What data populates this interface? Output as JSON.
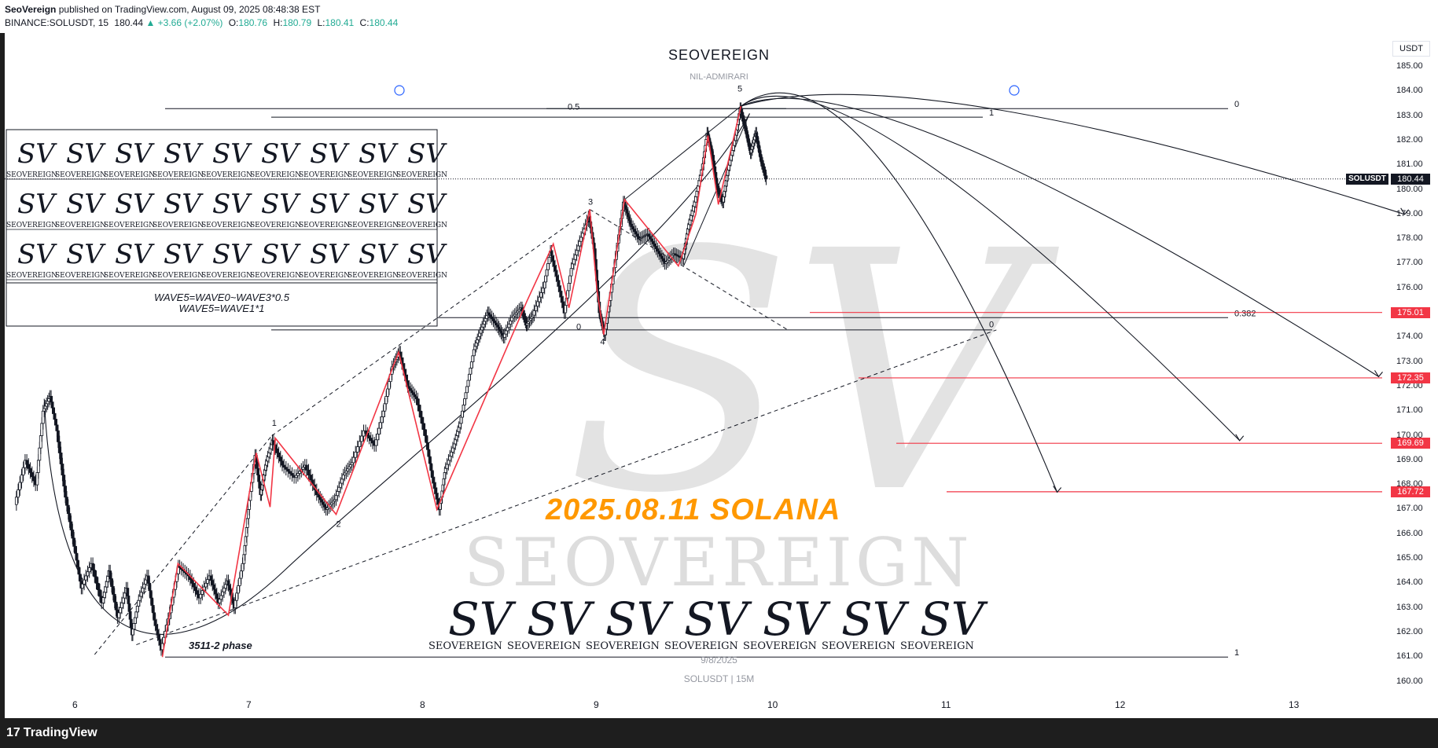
{
  "header": {
    "publisher": "SeoVereign",
    "published_text": "published on TradingView.com, August 09, 2025 08:48:38 EST",
    "symbol_line": "BINANCE:SOLUSDT, 15",
    "last": "180.44",
    "change": "▲ +3.66 (+2.07%)",
    "o_label": "O:",
    "o": "180.76",
    "h_label": "H:",
    "h": "180.79",
    "l_label": "L:",
    "l": "180.41",
    "c_label": "C:",
    "c": "180.44"
  },
  "branding": {
    "top": "SEOVEREIGN",
    "sub": "NIL-ADMIRARI",
    "watermark_big": "SEOVEREIGN",
    "logo_word": "SEOVEREIGN",
    "monogram": "SV"
  },
  "annotation": {
    "line1": "WAVE5=WAVE0~WAVE3*0.5",
    "line2": "WAVE5=WAVE1*1",
    "phase": "3511-2 phase",
    "title": "2025.08.11 SOLANA"
  },
  "watermark": {
    "date": "9/8/2025",
    "symbol": "SOLUSDT | 15M"
  },
  "footer": {
    "logo_text": "TradingView",
    "logo_mark": "17"
  },
  "chart_data": {
    "type": "candlestick",
    "symbol": "SOLUSDT",
    "currency": "USDT",
    "timeframe": "15",
    "y_range": [
      159.7,
      185.9
    ],
    "y_ticks": [
      "185.00",
      "184.00",
      "183.00",
      "182.00",
      "181.00",
      "180.00",
      "179.00",
      "178.00",
      "177.00",
      "176.00",
      "175.00",
      "174.00",
      "173.00",
      "172.00",
      "171.00",
      "170.00",
      "169.00",
      "168.00",
      "167.00",
      "166.00",
      "165.00",
      "164.00",
      "163.00",
      "162.00",
      "161.00",
      "160.00"
    ],
    "x_ticks": [
      "6",
      "7",
      "8",
      "9",
      "10",
      "11",
      "12",
      "13"
    ],
    "x_range_days": [
      5.65,
      13.6
    ],
    "current_price": "180.44",
    "current_label": "SOLUSDT",
    "target_levels": [
      "175.01",
      "172.35",
      "169.69",
      "167.72"
    ],
    "fib_labels": [
      {
        "text": "0.5",
        "price": 183.2
      },
      {
        "text": "1",
        "price": 182.95
      },
      {
        "text": "0",
        "price": 183.3
      },
      {
        "text": "0.382",
        "price": 174.8
      },
      {
        "text": "0",
        "price": 174.25
      },
      {
        "text": "0",
        "price": 174.35
      },
      {
        "text": "1",
        "price": 161.0
      }
    ],
    "wave_labels": [
      {
        "text": "1",
        "day": 7.13,
        "price": 170.4
      },
      {
        "text": "2",
        "day": 7.5,
        "price": 166.3
      },
      {
        "text": "3",
        "day": 8.95,
        "price": 179.4
      },
      {
        "text": "4",
        "day": 9.02,
        "price": 173.7
      },
      {
        "text": "5",
        "day": 9.81,
        "price": 184.0
      }
    ],
    "price_path": [
      [
        5.66,
        167.2
      ],
      [
        5.72,
        169.0
      ],
      [
        5.78,
        168.0
      ],
      [
        5.82,
        171.0
      ],
      [
        5.86,
        171.6
      ],
      [
        5.9,
        170.2
      ],
      [
        5.95,
        167.5
      ],
      [
        6.0,
        165.5
      ],
      [
        6.04,
        163.8
      ],
      [
        6.1,
        164.8
      ],
      [
        6.16,
        163.2
      ],
      [
        6.2,
        164.5
      ],
      [
        6.25,
        162.6
      ],
      [
        6.3,
        163.8
      ],
      [
        6.33,
        161.9
      ],
      [
        6.37,
        163.3
      ],
      [
        6.42,
        164.3
      ],
      [
        6.46,
        162.5
      ],
      [
        6.5,
        161.3
      ],
      [
        6.55,
        162.8
      ],
      [
        6.6,
        164.7
      ],
      [
        6.66,
        164.3
      ],
      [
        6.72,
        163.4
      ],
      [
        6.78,
        164.3
      ],
      [
        6.83,
        163.2
      ],
      [
        6.88,
        164.1
      ],
      [
        6.92,
        163.0
      ],
      [
        6.97,
        164.8
      ],
      [
        7.0,
        167.0
      ],
      [
        7.04,
        169.2
      ],
      [
        7.07,
        167.6
      ],
      [
        7.1,
        168.8
      ],
      [
        7.14,
        169.8
      ],
      [
        7.2,
        168.8
      ],
      [
        7.27,
        168.3
      ],
      [
        7.33,
        168.8
      ],
      [
        7.4,
        167.6
      ],
      [
        7.45,
        167.0
      ],
      [
        7.5,
        167.4
      ],
      [
        7.55,
        168.4
      ],
      [
        7.6,
        168.9
      ],
      [
        7.67,
        170.2
      ],
      [
        7.73,
        169.6
      ],
      [
        7.78,
        171.0
      ],
      [
        7.83,
        172.8
      ],
      [
        7.87,
        173.4
      ],
      [
        7.92,
        172.0
      ],
      [
        7.97,
        171.5
      ],
      [
        8.02,
        170.0
      ],
      [
        8.06,
        168.3
      ],
      [
        8.1,
        167.0
      ],
      [
        8.13,
        168.5
      ],
      [
        8.18,
        169.5
      ],
      [
        8.22,
        170.5
      ],
      [
        8.26,
        172.0
      ],
      [
        8.3,
        173.5
      ],
      [
        8.34,
        174.3
      ],
      [
        8.38,
        175.0
      ],
      [
        8.43,
        174.5
      ],
      [
        8.47,
        174.0
      ],
      [
        8.52,
        174.8
      ],
      [
        8.57,
        175.2
      ],
      [
        8.6,
        174.5
      ],
      [
        8.64,
        174.9
      ],
      [
        8.7,
        176.0
      ],
      [
        8.74,
        177.5
      ],
      [
        8.78,
        176.3
      ],
      [
        8.82,
        175.0
      ],
      [
        8.86,
        176.8
      ],
      [
        8.91,
        177.9
      ],
      [
        8.96,
        178.9
      ],
      [
        8.99,
        177.6
      ],
      [
        9.02,
        175.0
      ],
      [
        9.05,
        174.1
      ],
      [
        9.08,
        175.5
      ],
      [
        9.12,
        177.5
      ],
      [
        9.16,
        179.5
      ],
      [
        9.2,
        178.6
      ],
      [
        9.25,
        178.0
      ],
      [
        9.3,
        178.2
      ],
      [
        9.35,
        177.6
      ],
      [
        9.4,
        177.0
      ],
      [
        9.45,
        177.4
      ],
      [
        9.5,
        177.2
      ],
      [
        9.53,
        178.4
      ],
      [
        9.57,
        179.5
      ],
      [
        9.61,
        180.8
      ],
      [
        9.64,
        182.3
      ],
      [
        9.67,
        181.4
      ],
      [
        9.7,
        180.0
      ],
      [
        9.73,
        179.5
      ],
      [
        9.76,
        180.8
      ],
      [
        9.8,
        182.0
      ],
      [
        9.83,
        183.3
      ],
      [
        9.86,
        182.5
      ],
      [
        9.89,
        181.5
      ],
      [
        9.92,
        182.3
      ],
      [
        9.95,
        181.2
      ],
      [
        9.98,
        180.44
      ]
    ],
    "red_zigzag": [
      [
        6.5,
        161.0
      ],
      [
        6.59,
        164.8
      ],
      [
        6.88,
        162.7
      ],
      [
        7.04,
        169.3
      ],
      [
        7.12,
        167.1
      ],
      [
        7.15,
        169.9
      ],
      [
        7.5,
        166.8
      ],
      [
        7.86,
        173.4
      ],
      [
        8.08,
        167.0
      ],
      [
        8.6,
        175.5
      ],
      [
        8.75,
        177.8
      ],
      [
        8.84,
        175.2
      ],
      [
        8.96,
        179.2
      ],
      [
        9.0,
        176.0
      ],
      [
        9.04,
        174.1
      ],
      [
        9.16,
        179.6
      ],
      [
        9.47,
        176.9
      ],
      [
        9.57,
        179.0
      ],
      [
        9.64,
        182.2
      ],
      [
        9.7,
        179.4
      ],
      [
        9.83,
        183.4
      ]
    ]
  },
  "colors": {
    "accent_orange": "#ff9800",
    "target_red": "#f23645",
    "zigzag_red": "#f23645",
    "up": "#22ab94"
  }
}
